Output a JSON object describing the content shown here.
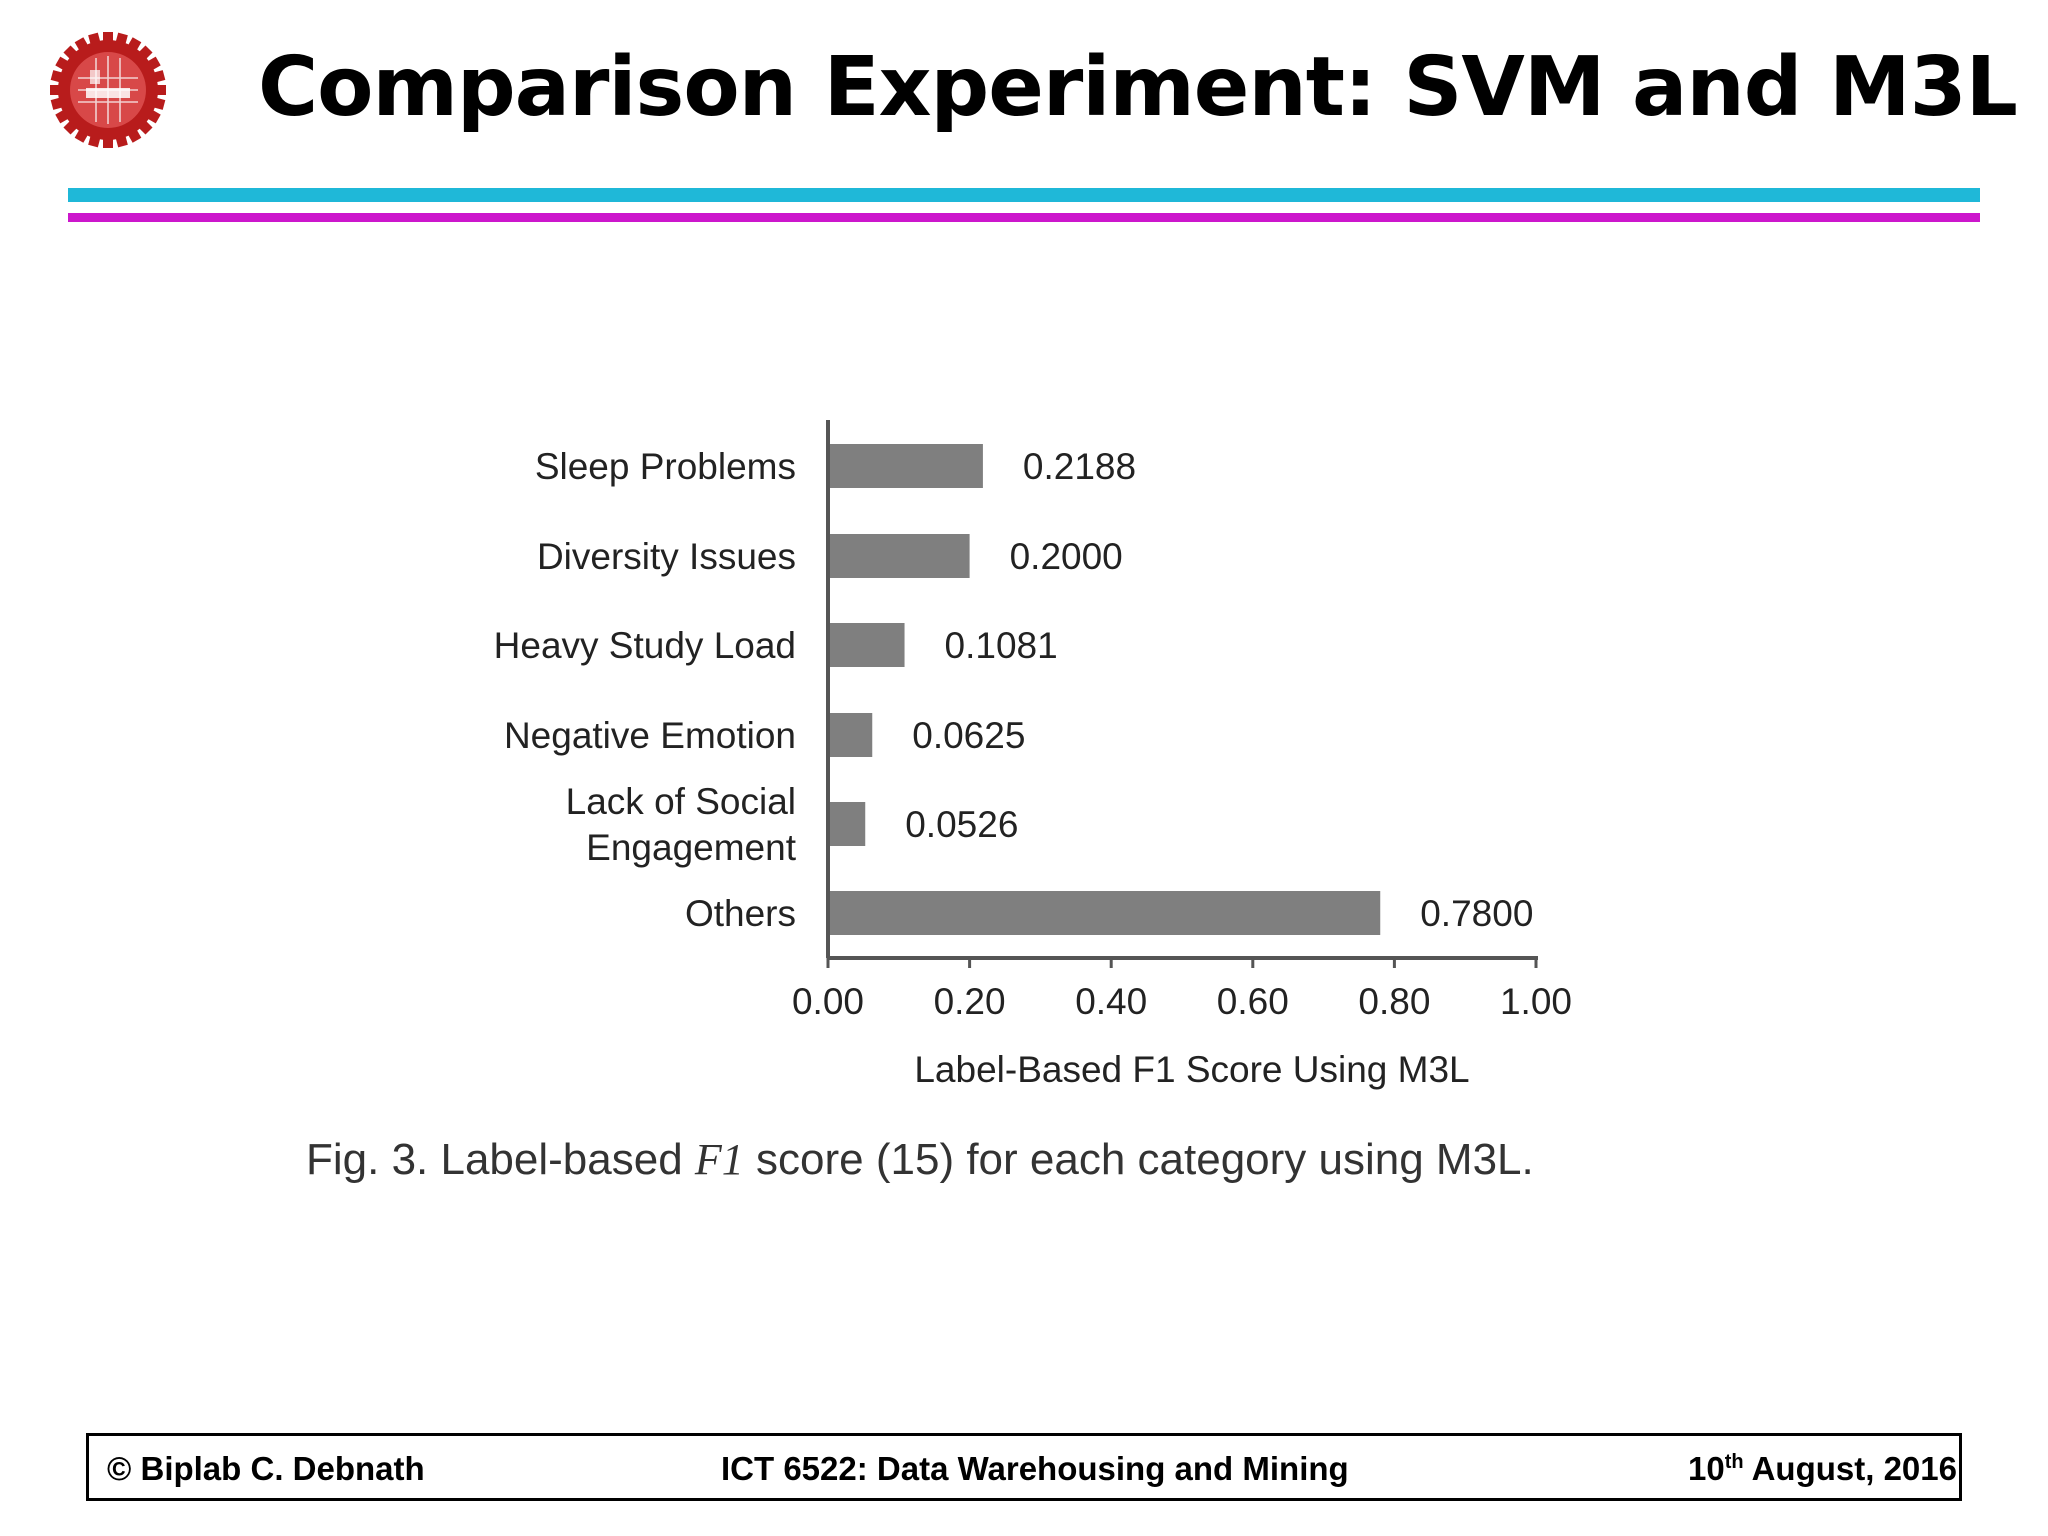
{
  "slide": {
    "title": "Comparison Experiment: SVM and M3L"
  },
  "colors": {
    "rule_top": "#1fb8d8",
    "rule_bottom": "#cc17cc",
    "bar": "#7f7f7f",
    "logo": "#b81c1c"
  },
  "logo_icon": "university-gear-seal-icon",
  "chart_data": {
    "type": "bar",
    "orientation": "horizontal",
    "categories": [
      "Sleep Problems",
      "Diversity Issues",
      "Heavy Study Load",
      "Negative Emotion",
      "Lack of Social Engagement",
      "Others"
    ],
    "category_lines": [
      [
        "Sleep Problems"
      ],
      [
        "Diversity Issues"
      ],
      [
        "Heavy Study Load"
      ],
      [
        "Negative Emotion"
      ],
      [
        "Lack of Social",
        "Engagement"
      ],
      [
        "Others"
      ]
    ],
    "values": [
      0.2188,
      0.2,
      0.1081,
      0.0625,
      0.0526,
      0.78
    ],
    "data_labels": [
      "0.2188",
      "0.2000",
      "0.1081",
      "0.0625",
      "0.0526",
      "0.7800"
    ],
    "xlabel": "Label-Based F1 Score Using M3L",
    "ylabel": "",
    "xlim": [
      0,
      1
    ],
    "xticks": [
      "0.00",
      "0.20",
      "0.40",
      "0.60",
      "0.80",
      "1.00"
    ],
    "xtick_values": [
      0,
      0.2,
      0.4,
      0.6,
      0.8,
      1.0
    ],
    "grid": false,
    "legend": "none"
  },
  "caption": {
    "prefix": "Fig. 3. Label-based ",
    "math": "F1",
    "suffix": " score (15) for each category using M3L."
  },
  "footer": {
    "left": "© Biplab C. Debnath",
    "center": "ICT 6522: Data Warehousing and Mining",
    "right_day": "10",
    "right_sup": "th",
    "right_rest": " August, 2016"
  }
}
